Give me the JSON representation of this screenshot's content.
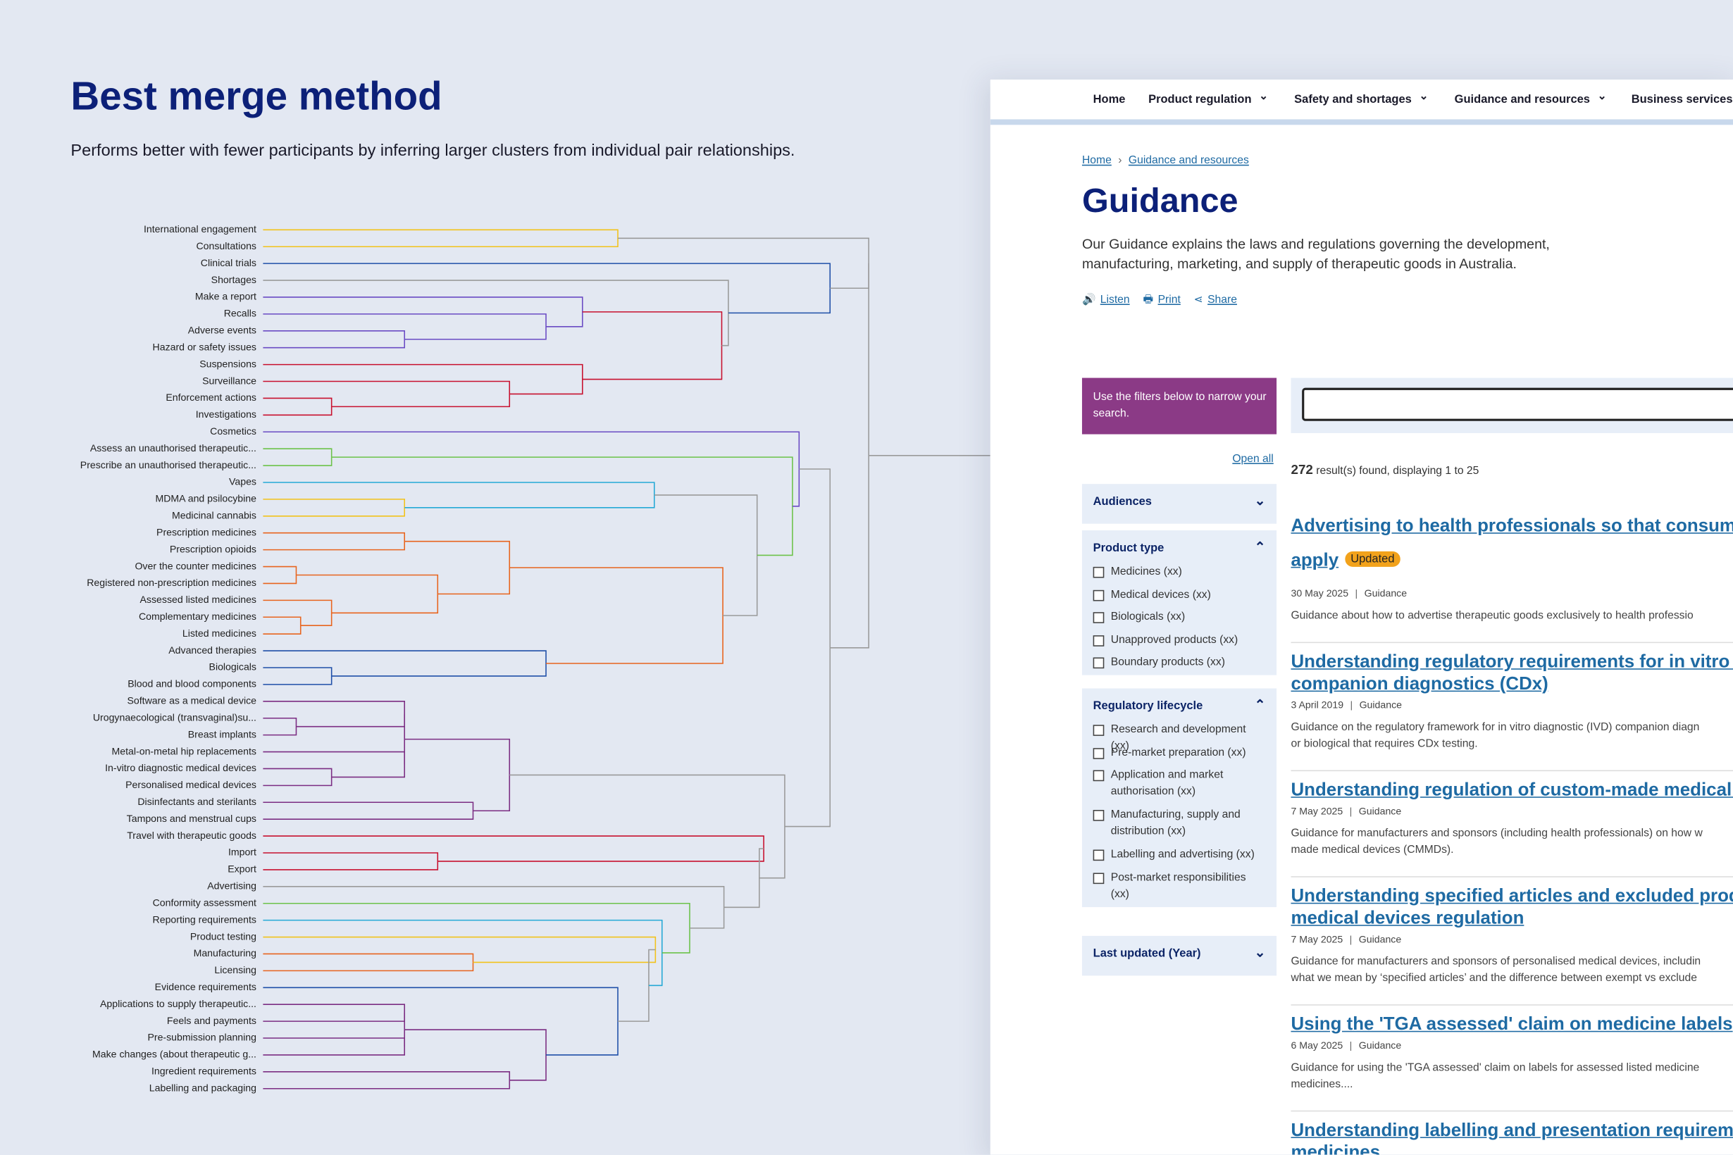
{
  "slide": {
    "title": "Best merge method",
    "subtitle": "Performs better with fewer participants by inferring larger clusters from individual pair relationships.",
    "dendrogram_labels": [
      "International engagement",
      "Consultations",
      "Clinical trials",
      "Shortages",
      "Make a report",
      "Recalls",
      "Adverse events",
      "Hazard or safety issues",
      "Suspensions",
      "Surveillance",
      "Enforcement actions",
      "Investigations",
      "Cosmetics",
      "Assess an unauthorised therapeutic...",
      "Prescribe an unauthorised therapeutic...",
      "Vapes",
      "MDMA and psilocybine",
      "Medicinal cannabis",
      "Prescription medicines",
      "Prescription opioids",
      "Over the counter medicines",
      "Registered non-prescription medicines",
      "Assessed listed medicines",
      "Complementary medicines",
      "Listed medicines",
      "Advanced therapies",
      "Biologicals",
      "Blood and blood components",
      "Software as a medical device",
      "Urogynaecological (transvaginal)su...",
      "Breast implants",
      "Metal-on-metal hip replacements",
      "In-vitro diagnostic medical devices",
      "Personalised medical devices",
      "Disinfectants and sterilants",
      "Tampons and menstrual cups",
      "Travel with therapeutic goods",
      "Import",
      "Export",
      "Advertising",
      "Conformity assessment",
      "Reporting requirements",
      "Product testing",
      "Manufacturing",
      "Licensing",
      "Evidence requirements",
      "Applications to supply therapeutic...",
      "Feels and payments",
      "Pre-submission planning",
      "Make changes (about therapeutic g...",
      "Ingredient requirements",
      "Labelling and packaging"
    ]
  },
  "website": {
    "nav": [
      "Home",
      "Product regulation",
      "Safety and shortages",
      "Guidance and resources",
      "Business services"
    ],
    "breadcrumb": [
      "Home",
      "Guidance and resources"
    ],
    "heading": "Guidance",
    "intro": "Our Guidance explains the laws and regulations governing the development, manufacturing, marketing, and supply of therapeutic goods in Australia.",
    "actions": [
      "Listen",
      "Print",
      "Share"
    ],
    "filter_note": "Use the filters below to narrow your search.",
    "open_all": "Open all",
    "result_count": "272",
    "result_text": "result(s) found, displaying 1 to 25",
    "filters": [
      {
        "title": "Audiences",
        "options": []
      },
      {
        "title": "Product type",
        "options": [
          "Medicines (xx)",
          "Medical devices (xx)",
          "Biologicals (xx)",
          "Unapproved products (xx)",
          "Boundary products (xx)"
        ]
      },
      {
        "title": "Regulatory lifecycle",
        "options": [
          "Research and development (xx)",
          "Pre-market preparation (xx)",
          "Application and market authorisation (xx)",
          "Manufacturing, supply and distribution (xx)",
          "Labelling and advertising (xx)",
          "Post-market responsibilities (xx)"
        ]
      },
      {
        "title": "Last updated (Year)",
        "options": []
      }
    ],
    "results": [
      {
        "title_lines": [
          "Advertising to health professionals so that consume",
          "apply"
        ],
        "badge": "Updated",
        "date": "30 May 2025",
        "type": "Guidance",
        "summary_lines": [
          "Guidance about how to advertise therapeutic goods exclusively to health professio"
        ]
      },
      {
        "title_lines": [
          "Understanding regulatory requirements for in vitro d",
          "companion diagnostics (CDx)"
        ],
        "date": "3 April 2019",
        "type": "Guidance",
        "summary_lines": [
          "Guidance on the regulatory framework for in vitro diagnostic (IVD) companion diagn",
          "or biological that requires CDx testing."
        ]
      },
      {
        "title_lines": [
          "Understanding regulation of custom-made medical d"
        ],
        "date": "7 May 2025",
        "type": "Guidance",
        "summary_lines": [
          "Guidance for manufacturers and sponsors (including health professionals) on how w",
          "made medical devices (CMMDs)."
        ]
      },
      {
        "title_lines": [
          "Understanding specified articles and excluded prod",
          "medical devices regulation"
        ],
        "date": "7 May 2025",
        "type": "Guidance",
        "summary_lines": [
          "Guidance for manufacturers and sponsors of personalised medical devices, includin",
          "what we mean by ‘specified articles’ and the difference between exempt vs exclude"
        ]
      },
      {
        "title_lines": [
          "Using the 'TGA assessed' claim on medicine labels"
        ],
        "date": "6 May 2025",
        "type": "Guidance",
        "summary_lines": [
          "Guidance for using the 'TGA assessed' claim on labels for assessed listed medicine",
          "medicines...."
        ]
      },
      {
        "title_lines": [
          "Understanding labelling and presentation requireme",
          "medicines"
        ]
      }
    ]
  }
}
